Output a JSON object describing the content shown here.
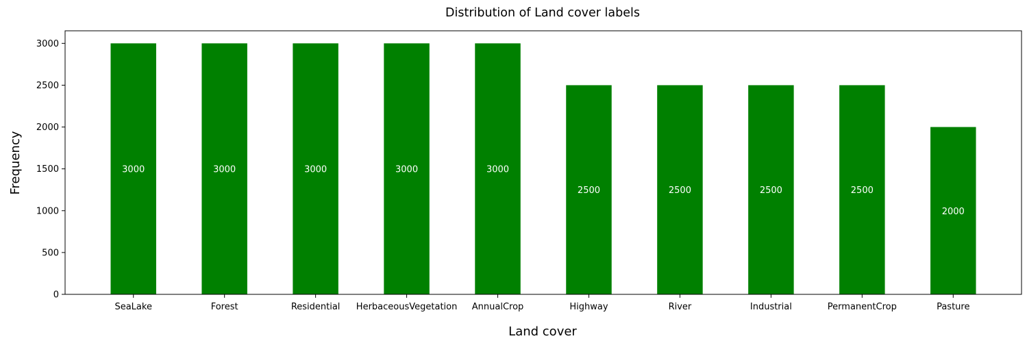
{
  "chart_data": {
    "type": "bar",
    "title": "Distribution of Land cover labels",
    "xlabel": "Land cover",
    "ylabel": "Frequency",
    "categories": [
      "SeaLake",
      "Forest",
      "Residential",
      "HerbaceousVegetation",
      "AnnualCrop",
      "Highway",
      "River",
      "Industrial",
      "PermanentCrop",
      "Pasture"
    ],
    "values": [
      3000,
      3000,
      3000,
      3000,
      3000,
      2500,
      2500,
      2500,
      2500,
      2000
    ],
    "value_labels": [
      "3000",
      "3000",
      "3000",
      "3000",
      "3000",
      "2500",
      "2500",
      "2500",
      "2500",
      "2000"
    ],
    "yticks": [
      0,
      500,
      1000,
      1500,
      2000,
      2500,
      3000
    ],
    "ylim": [
      0,
      3150
    ],
    "grid": false,
    "legend": "none",
    "bar_color": "#008000",
    "bar_label_color": "#ffffff"
  }
}
